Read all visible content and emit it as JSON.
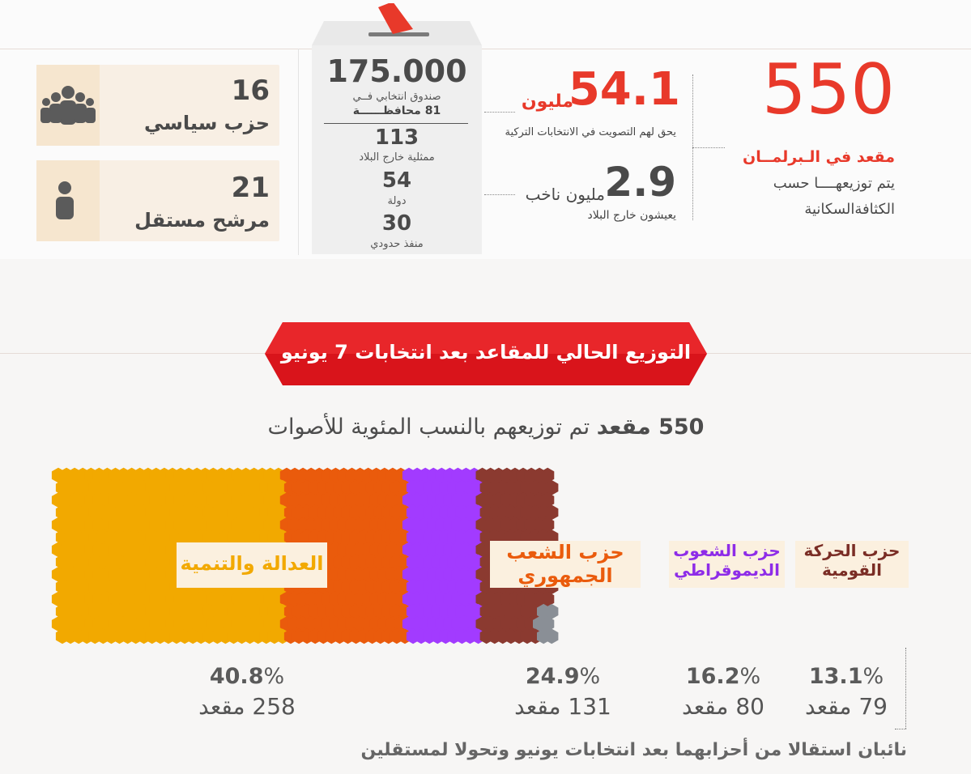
{
  "top": {
    "parties": {
      "count": "16",
      "label": "حزب سياسي"
    },
    "independents": {
      "count": "21",
      "label": "مرشح مستقل"
    },
    "ballot": {
      "boxes": "175.000",
      "boxes_desc_line1": "صندوق انتخابي فــي",
      "boxes_desc_line2": "81 محافظــــــة",
      "abroad_count": "113",
      "abroad_desc": "ممثلية خارج البلاد",
      "countries_count": "54",
      "countries_desc": "دولة",
      "border_count": "30",
      "border_desc": "منفذ حدودي"
    },
    "voters": {
      "value": "54.1",
      "unit": "مليون",
      "desc": "يحق لهم التصويت في الانتخابات التركية"
    },
    "abroad_voters": {
      "value": "2.9",
      "unit": "مليون ناخب",
      "desc": "يعيشون خارج البلاد"
    },
    "seats": {
      "value": "550",
      "label": "مقعد في الـبرلمــان",
      "desc_line1": "يتم توزيعهــــا حسب",
      "desc_line2": "الكثافةالسكانية"
    }
  },
  "banner": {
    "title": "التوزيع الحالي للمقاعد بعد انتخابات 7 يونيو"
  },
  "subtitle": {
    "bold": "550 مقعد",
    "rest": "تم توزيعهم بالنسب المئوية للأصوات"
  },
  "parties": [
    {
      "name_line1": "العدالة والتنمية",
      "name_line2": "",
      "percent": "40.8",
      "seats": "258 مقعد",
      "color": "#f2a900",
      "label_color": "#f2a900"
    },
    {
      "name_line1": "حزب الشعب",
      "name_line2": "الجمهوري",
      "percent": "24.9",
      "seats": "131 مقعد",
      "color": "#ea5b0c",
      "label_color": "#ea5b0c"
    },
    {
      "name_line1": "حزب الشعوب",
      "name_line2": "الديموقراطي",
      "percent": "16.2",
      "seats": "80 مقعد",
      "color": "#a23bff",
      "label_color": "#8e2ce8"
    },
    {
      "name_line1": "حزب الحركة",
      "name_line2": "القومية",
      "percent": "13.1",
      "seats": "79 مقعد",
      "color": "#8b3a30",
      "label_color": "#7a2d25"
    }
  ],
  "independent_color": "#8a8f96",
  "footnote": "نائبان استقالا من أحزابهما بعد انتخابات يونيو وتحولا لمستقلين"
}
